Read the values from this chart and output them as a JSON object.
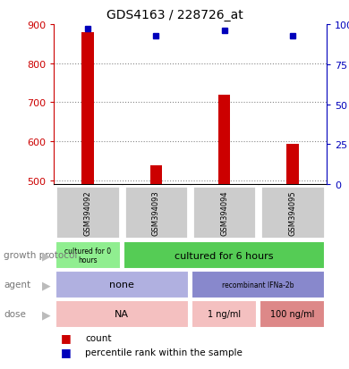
{
  "title": "GDS4163 / 228726_at",
  "samples": [
    "GSM394092",
    "GSM394093",
    "GSM394094",
    "GSM394095"
  ],
  "counts": [
    880,
    537,
    718,
    592
  ],
  "percentiles": [
    97,
    93,
    96,
    93
  ],
  "ylim_left": [
    490,
    900
  ],
  "ylim_right": [
    0,
    100
  ],
  "yticks_left": [
    500,
    600,
    700,
    800,
    900
  ],
  "yticks_right": [
    0,
    25,
    50,
    75,
    100
  ],
  "bar_color": "#cc0000",
  "dot_color": "#0000bb",
  "growth_protocol_colors": [
    "#90ee90",
    "#55cc55"
  ],
  "agent_colors": [
    "#b0b0e0",
    "#8888cc"
  ],
  "dose_colors": [
    "#f4c0c0",
    "#dd8888"
  ],
  "sample_bg_color": "#cccccc",
  "label_color": "#777777",
  "arrow_color": "#bbbbbb",
  "row_labels": [
    "growth protocol",
    "agent",
    "dose"
  ]
}
